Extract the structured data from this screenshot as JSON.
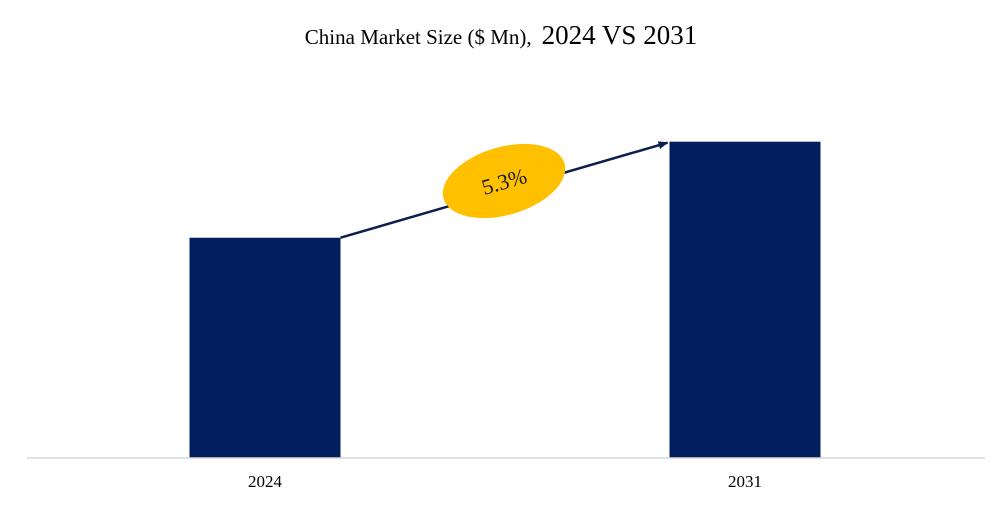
{
  "title": {
    "prefix": "China Market Size ($ Mn),",
    "suffix": "2024 VS 2031"
  },
  "colors": {
    "bar": "#001f5c",
    "arrow": "#0d1f4e",
    "badge": "#ffc000",
    "axis": "#d9d9d9"
  },
  "chart_data": {
    "type": "bar",
    "title": "China Market Size ($ Mn), 2024 VS 2031",
    "categories": [
      "2024",
      "2031"
    ],
    "values": [
      100,
      143.6
    ],
    "ylim": [
      0,
      148
    ],
    "xlabel": "",
    "ylabel": "",
    "grid": false,
    "legend": "none",
    "annotation": {
      "type": "cagr-arrow",
      "label": "5.3%"
    }
  }
}
